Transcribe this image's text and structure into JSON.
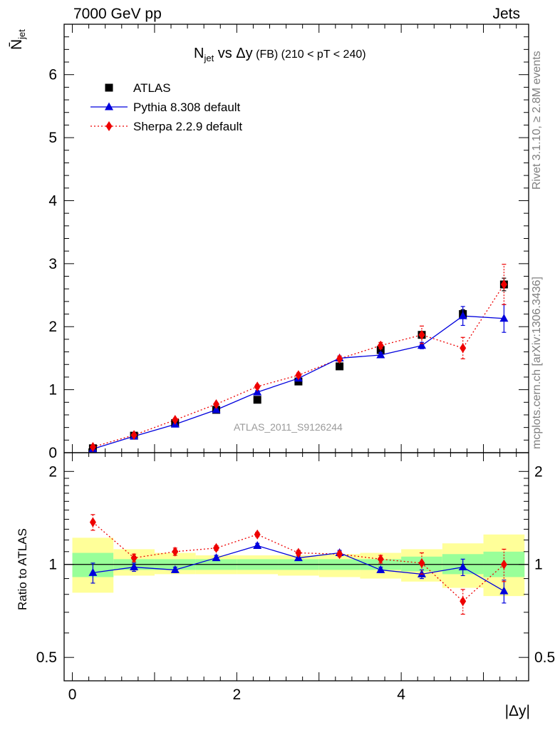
{
  "header": {
    "left": "7000 GeV pp",
    "right": "Jets"
  },
  "plot_title": {
    "main": "N",
    "main_sub": "jet",
    "mid": " vs Δy",
    "small": " (FB) (210 < pT < 240)"
  },
  "side": {
    "rivet": "Rivet 3.1.10, ≥ 2.8M events",
    "mcplots": "mcplots.cern.ch [arXiv:1306.3436]"
  },
  "watermark": "ATLAS_2011_S9126244",
  "colors": {
    "data": "#000000",
    "pythia": "#0000dd",
    "sherpa": "#ee0000",
    "band_inner": "#99ff99",
    "band_outer": "#ffff99"
  },
  "chart_data": [
    {
      "type": "scatter",
      "ylabel": "N̄",
      "ylabel_sub": "jet",
      "xlim": [
        -0.1,
        5.55
      ],
      "ylim": [
        0,
        6.8
      ],
      "yticks": [
        0,
        1,
        2,
        3,
        4,
        5,
        6
      ],
      "legend_position": "top-left",
      "x": [
        0.25,
        0.75,
        1.25,
        1.75,
        2.25,
        2.75,
        3.25,
        3.75,
        4.25,
        4.75,
        5.25
      ],
      "series": [
        {
          "name": "ATLAS",
          "marker": "square",
          "values": [
            0.07,
            0.27,
            0.47,
            0.68,
            0.84,
            1.13,
            1.37,
            1.63,
            1.87,
            2.2,
            2.67
          ],
          "errors": [
            0.01,
            0.01,
            0.02,
            0.02,
            0.02,
            0.03,
            0.03,
            0.04,
            0.05,
            0.07,
            0.1
          ]
        },
        {
          "name": "Pythia 8.308 default",
          "marker": "triangle",
          "values": [
            0.06,
            0.26,
            0.45,
            0.68,
            0.96,
            1.18,
            1.5,
            1.55,
            1.7,
            2.17,
            2.13
          ],
          "errors": [
            0.005,
            0.01,
            0.015,
            0.02,
            0.025,
            0.03,
            0.035,
            0.04,
            0.05,
            0.15,
            0.22
          ]
        },
        {
          "name": "Sherpa 2.2.9 default",
          "marker": "diamond",
          "values": [
            0.09,
            0.28,
            0.52,
            0.77,
            1.05,
            1.23,
            1.49,
            1.7,
            1.87,
            1.66,
            2.67
          ],
          "errors": [
            0.005,
            0.01,
            0.02,
            0.02,
            0.03,
            0.035,
            0.04,
            0.05,
            0.14,
            0.17,
            0.32
          ]
        }
      ]
    },
    {
      "type": "scatter",
      "xlabel": "|Δy|",
      "ylabel": "Ratio to ATLAS",
      "xlim": [
        -0.1,
        5.55
      ],
      "xticks": [
        0,
        2,
        4
      ],
      "ylog": true,
      "ylim": [
        0.42,
        2.3
      ],
      "yticks": [
        0.5,
        1,
        2
      ],
      "x": [
        0.25,
        0.75,
        1.25,
        1.75,
        2.25,
        2.75,
        3.25,
        3.75,
        4.25,
        4.75,
        5.25
      ],
      "band": {
        "edges": [
          0,
          0.5,
          1.0,
          1.5,
          2.0,
          2.5,
          3.0,
          3.5,
          4.0,
          4.5,
          5.0,
          5.5
        ],
        "inner_low": [
          0.91,
          0.96,
          0.96,
          0.96,
          0.96,
          0.96,
          0.96,
          0.96,
          0.95,
          0.93,
          0.91
        ],
        "inner_high": [
          1.09,
          1.04,
          1.04,
          1.04,
          1.04,
          1.04,
          1.04,
          1.04,
          1.06,
          1.08,
          1.1
        ],
        "outer_low": [
          0.81,
          0.92,
          0.93,
          0.93,
          0.93,
          0.92,
          0.91,
          0.9,
          0.88,
          0.84,
          0.79
        ],
        "outer_high": [
          1.22,
          1.12,
          1.09,
          1.07,
          1.07,
          1.07,
          1.08,
          1.09,
          1.12,
          1.17,
          1.25
        ]
      },
      "series": [
        {
          "name": "Pythia 8.308 default",
          "values": [
            0.94,
            0.98,
            0.96,
            1.05,
            1.15,
            1.05,
            1.09,
            0.96,
            0.93,
            0.98,
            0.82
          ],
          "errors": [
            0.07,
            0.03,
            0.02,
            0.02,
            0.02,
            0.02,
            0.02,
            0.02,
            0.03,
            0.06,
            0.07
          ]
        },
        {
          "name": "Sherpa 2.2.9 default",
          "values": [
            1.37,
            1.05,
            1.1,
            1.13,
            1.25,
            1.09,
            1.08,
            1.04,
            1.01,
            0.76,
            1.0
          ],
          "errors": [
            0.08,
            0.03,
            0.03,
            0.02,
            0.02,
            0.02,
            0.02,
            0.03,
            0.08,
            0.07,
            0.12
          ]
        }
      ]
    }
  ]
}
